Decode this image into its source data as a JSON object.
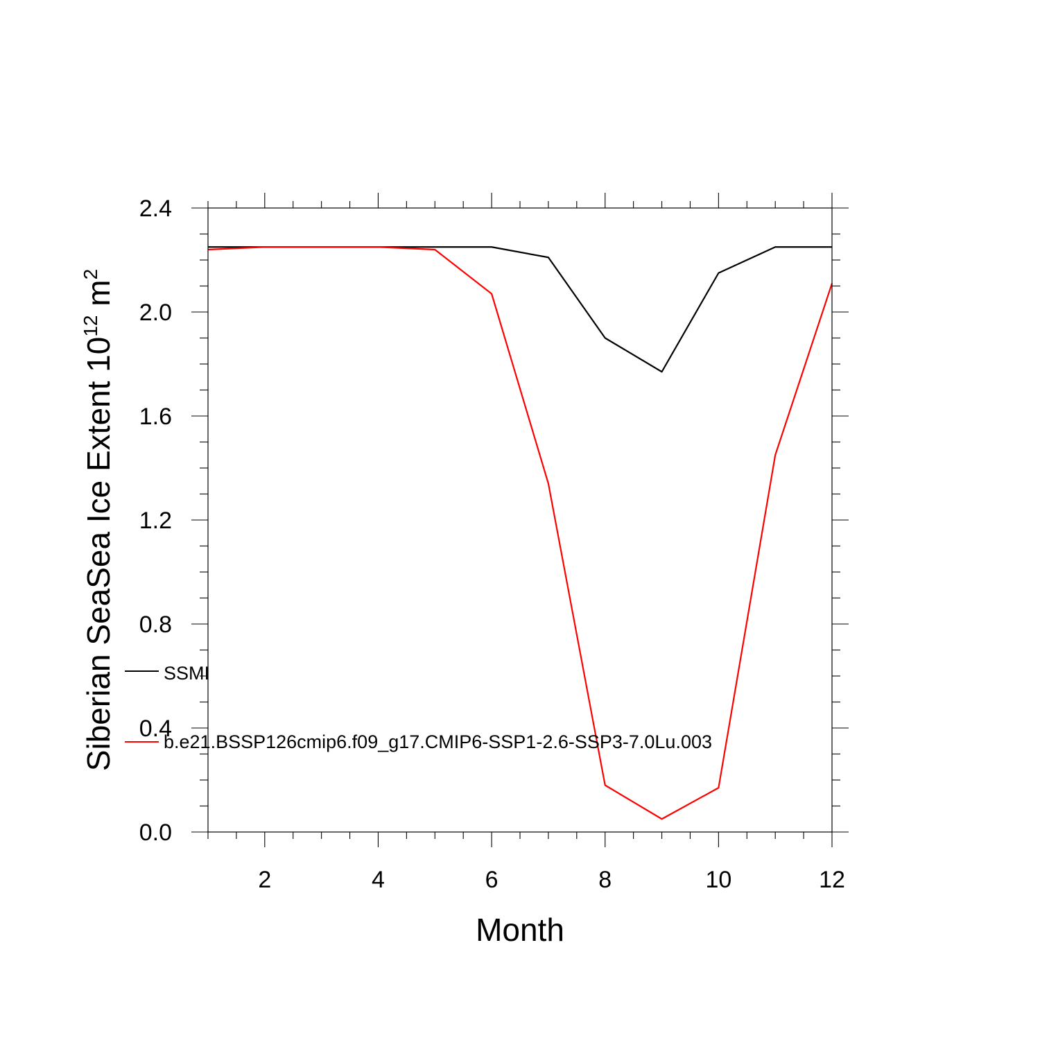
{
  "chart_data": {
    "type": "line",
    "xlabel": "Month",
    "ylabel_main": "Siberian SeaSea Ice Extent 10",
    "ylabel_exponent": "12",
    "ylabel_unit": " m",
    "ylabel_unit_exponent": "2",
    "xlim": [
      1,
      12
    ],
    "ylim": [
      0.0,
      2.4
    ],
    "x_ticks": [
      2,
      4,
      6,
      8,
      10,
      12
    ],
    "x_tick_labels": [
      "2",
      "4",
      "6",
      "8",
      "10",
      "12"
    ],
    "y_ticks": [
      0.0,
      0.4,
      0.8,
      1.2,
      1.6,
      2.0,
      2.4
    ],
    "y_tick_labels": [
      "0.0",
      "0.4",
      "0.8",
      "1.2",
      "1.6",
      "2.0",
      "2.4"
    ],
    "x": [
      1,
      2,
      3,
      4,
      5,
      6,
      7,
      8,
      9,
      10,
      11,
      12
    ],
    "grid": false,
    "legend_placement": "left-middle",
    "series": [
      {
        "name": "SSMI",
        "color": "#000000",
        "values": [
          2.25,
          2.25,
          2.25,
          2.25,
          2.25,
          2.25,
          2.21,
          1.9,
          1.77,
          2.15,
          2.25,
          2.25
        ]
      },
      {
        "name": "b.e21.BSSP126cmip6.f09_g17.CMIP6-SSP1-2.6-SSP3-7.0Lu.003",
        "color": "#ff0000",
        "values": [
          2.24,
          2.25,
          2.25,
          2.25,
          2.24,
          2.07,
          1.34,
          0.18,
          0.05,
          0.17,
          1.45,
          2.11
        ]
      }
    ]
  }
}
